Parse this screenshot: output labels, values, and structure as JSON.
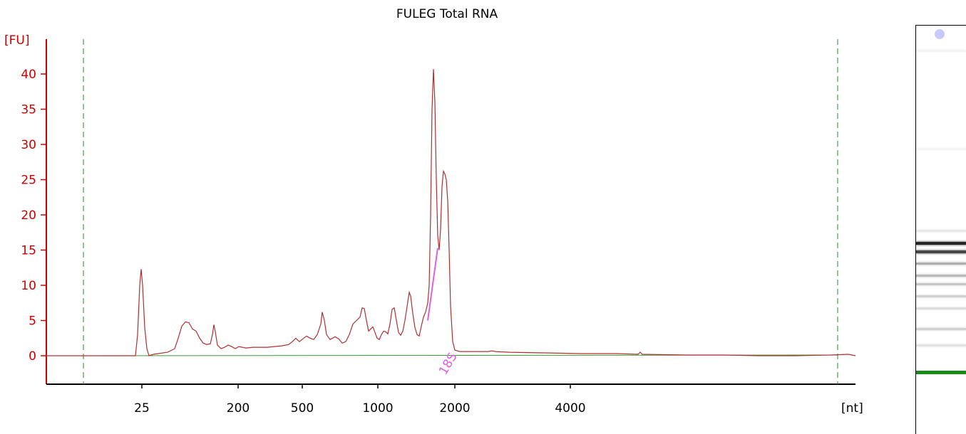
{
  "chart_data": {
    "type": "line",
    "title": "FULEG Total RNA",
    "ylabel": "[FU]",
    "xlabel": "[nt]",
    "ylim": [
      -4,
      45
    ],
    "y_ticks": [
      0,
      5,
      10,
      15,
      20,
      25,
      30,
      35,
      40
    ],
    "x_tick_labels": [
      "25",
      "200",
      "500",
      "1000",
      "2000",
      "4000"
    ],
    "grid": false,
    "colors": {
      "axis": "#cc0000",
      "trace": "#b03030",
      "baseline": "#3a9a3a",
      "markers": "#2a8a2a",
      "peak_annotation": "#e060e0"
    },
    "peak_annotation": {
      "label": "18S"
    },
    "series": [
      {
        "points": [
          [
            0,
            0
          ],
          [
            80,
            0
          ],
          [
            125,
            0
          ],
          [
            128,
            3
          ],
          [
            131,
            10
          ],
          [
            133,
            12.3
          ],
          [
            135,
            10
          ],
          [
            138,
            4
          ],
          [
            141,
            1
          ],
          [
            144,
            0
          ],
          [
            150,
            0.2
          ],
          [
            170,
            0.5
          ],
          [
            180,
            1
          ],
          [
            185,
            2.5
          ],
          [
            190,
            4.2
          ],
          [
            195,
            4.8
          ],
          [
            200,
            4.7
          ],
          [
            205,
            3.8
          ],
          [
            210,
            3.5
          ],
          [
            215,
            2.5
          ],
          [
            220,
            1.8
          ],
          [
            225,
            1.6
          ],
          [
            230,
            1.7
          ],
          [
            233,
            3
          ],
          [
            235,
            4.4
          ],
          [
            237,
            3.4
          ],
          [
            240,
            1.5
          ],
          [
            245,
            1
          ],
          [
            250,
            1.2
          ],
          [
            255,
            1.5
          ],
          [
            260,
            1.3
          ],
          [
            265,
            1
          ],
          [
            270,
            1.3
          ],
          [
            280,
            1.1
          ],
          [
            290,
            1.2
          ],
          [
            300,
            1.2
          ],
          [
            310,
            1.2
          ],
          [
            320,
            1.3
          ],
          [
            330,
            1.4
          ],
          [
            340,
            1.6
          ],
          [
            345,
            2
          ],
          [
            350,
            2.5
          ],
          [
            355,
            2
          ],
          [
            360,
            2.4
          ],
          [
            365,
            2.8
          ],
          [
            370,
            2.5
          ],
          [
            375,
            2.3
          ],
          [
            380,
            3
          ],
          [
            385,
            4.5
          ],
          [
            387,
            6.2
          ],
          [
            390,
            5
          ],
          [
            393,
            3
          ],
          [
            398,
            2.3
          ],
          [
            405,
            2.7
          ],
          [
            410,
            2.4
          ],
          [
            415,
            1.8
          ],
          [
            420,
            2
          ],
          [
            425,
            3
          ],
          [
            430,
            4.5
          ],
          [
            435,
            5
          ],
          [
            440,
            5.5
          ],
          [
            443,
            6.8
          ],
          [
            446,
            6.7
          ],
          [
            449,
            5
          ],
          [
            452,
            3.5
          ],
          [
            455,
            3.8
          ],
          [
            458,
            4.1
          ],
          [
            461,
            3.3
          ],
          [
            464,
            2.5
          ],
          [
            467,
            2.3
          ],
          [
            470,
            3
          ],
          [
            473,
            3.5
          ],
          [
            476,
            3.4
          ],
          [
            479,
            3.1
          ],
          [
            482,
            4.5
          ],
          [
            485,
            6.6
          ],
          [
            488,
            6.8
          ],
          [
            491,
            5
          ],
          [
            494,
            3.3
          ],
          [
            497,
            2.9
          ],
          [
            500,
            3.5
          ],
          [
            503,
            5
          ],
          [
            506,
            7
          ],
          [
            509,
            9
          ],
          [
            511,
            8.5
          ],
          [
            514,
            6
          ],
          [
            517,
            4
          ],
          [
            520,
            3
          ],
          [
            523,
            2.8
          ],
          [
            526,
            4.2
          ],
          [
            529,
            5.5
          ],
          [
            532,
            6.2
          ],
          [
            535,
            7.5
          ],
          [
            537,
            10
          ],
          [
            539,
            20
          ],
          [
            541,
            35
          ],
          [
            543,
            40.7
          ],
          [
            545,
            36
          ],
          [
            547,
            25
          ],
          [
            549,
            17
          ],
          [
            551,
            15
          ],
          [
            553,
            18
          ],
          [
            555,
            24
          ],
          [
            557,
            26.2
          ],
          [
            559,
            25.8
          ],
          [
            561,
            25
          ],
          [
            563,
            22
          ],
          [
            565,
            15
          ],
          [
            567,
            7
          ],
          [
            570,
            2
          ],
          [
            573,
            0.8
          ],
          [
            580,
            0.6
          ],
          [
            600,
            0.6
          ],
          [
            620,
            0.6
          ],
          [
            625,
            0.7
          ],
          [
            630,
            0.6
          ],
          [
            650,
            0.5
          ],
          [
            700,
            0.4
          ],
          [
            750,
            0.3
          ],
          [
            800,
            0.3
          ],
          [
            830,
            0.2
          ],
          [
            833,
            0.5
          ],
          [
            836,
            0.2
          ],
          [
            900,
            0.1
          ],
          [
            950,
            0.1
          ],
          [
            1000,
            0
          ],
          [
            1050,
            0
          ],
          [
            1100,
            0.1
          ],
          [
            1125,
            0.2
          ],
          [
            1135,
            0
          ]
        ]
      }
    ],
    "peak_annotation_line": [
      [
        535,
        5
      ],
      [
        549,
        15.3
      ]
    ]
  },
  "gel": {
    "bands": [
      {
        "level": 0.06,
        "intensity": 0.05
      },
      {
        "level": 0.3,
        "intensity": 0.05
      },
      {
        "level": 0.5,
        "intensity": 0.1
      },
      {
        "level": 0.53,
        "intensity": 0.95
      },
      {
        "level": 0.55,
        "intensity": 0.8
      },
      {
        "level": 0.58,
        "intensity": 0.35
      },
      {
        "level": 0.61,
        "intensity": 0.3
      },
      {
        "level": 0.63,
        "intensity": 0.25
      },
      {
        "level": 0.66,
        "intensity": 0.2
      },
      {
        "level": 0.69,
        "intensity": 0.15
      },
      {
        "level": 0.74,
        "intensity": 0.2
      },
      {
        "level": 0.78,
        "intensity": 0.12
      }
    ],
    "marker_level": 0.845,
    "marker_color": "#1a8a1a"
  }
}
